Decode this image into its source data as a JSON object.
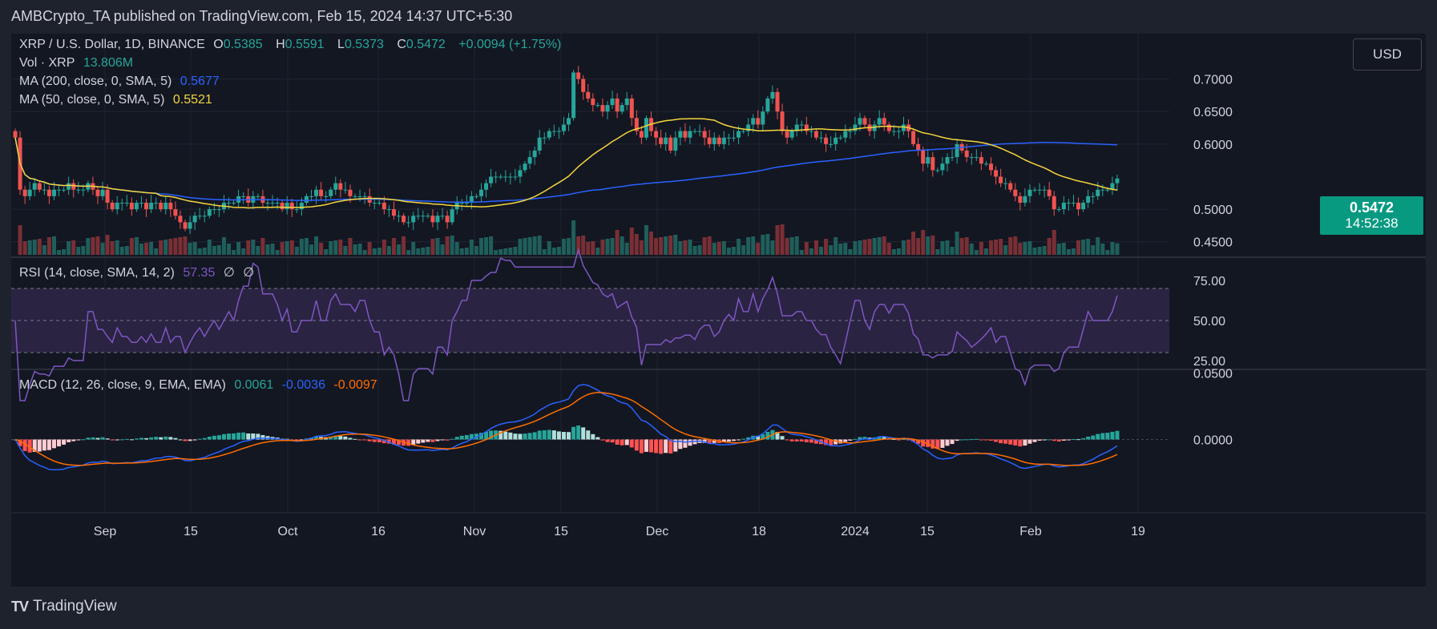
{
  "header": {
    "publish_line": "AMBCrypto_TA published on TradingView.com, Feb 15, 2024 14:37 UTC+5:30"
  },
  "legend": {
    "symbol": "XRP / U.S. Dollar, 1D, BINANCE",
    "o_label": "O",
    "o": "0.5385",
    "h_label": "H",
    "h": "0.5591",
    "l_label": "L",
    "l": "0.5373",
    "c_label": "C",
    "c": "0.5472",
    "change": "+0.0094 (+1.75%)",
    "vol_label": "Vol · XRP",
    "vol": "13.806M",
    "ma200_label": "MA (200, close, 0, SMA, 5)",
    "ma200": "0.5677",
    "ma50_label": "MA (50, close, 0, SMA, 5)",
    "ma50": "0.5521",
    "rsi_label": "RSI (14, close, SMA, 14, 2)",
    "rsi": "57.35",
    "rsi_extra1": "∅",
    "rsi_extra2": "∅",
    "macd_label": "MACD (12, 26, close, 9, EMA, EMA)",
    "macd": "0.0061",
    "macd_signal": "-0.0036",
    "macd_hist": "-0.0097"
  },
  "currency": "USD",
  "price_tag": {
    "price": "0.5472",
    "countdown": "14:52:38"
  },
  "footer": {
    "logo_text": "TV",
    "brand": "TradingView"
  },
  "colors": {
    "up": "#26a69a",
    "down": "#ef5350",
    "ma200": "#2962ff",
    "ma50": "#f5d63d",
    "rsi": "#7e57c2",
    "macd": "#2962ff",
    "signal": "#ff6d00",
    "bg": "#131722"
  },
  "chart_data": [
    {
      "type": "candlestick",
      "title": "XRP / U.S. Dollar, 1D, BINANCE",
      "x_ticks": [
        "Sep",
        "15",
        "Oct",
        "16",
        "Nov",
        "15",
        "Dec",
        "18",
        "2024",
        "15",
        "Feb",
        "19"
      ],
      "y_ticks": [
        "0.7000",
        "0.6500",
        "0.6000",
        "0.5000",
        "0.4500"
      ],
      "ylim": [
        0.43,
        0.745
      ],
      "close": [
        0.61,
        0.53,
        0.52,
        0.53,
        0.54,
        0.53,
        0.53,
        0.52,
        0.53,
        0.53,
        0.53,
        0.54,
        0.53,
        0.53,
        0.53,
        0.54,
        0.53,
        0.52,
        0.53,
        0.51,
        0.5,
        0.51,
        0.51,
        0.51,
        0.5,
        0.51,
        0.51,
        0.5,
        0.51,
        0.51,
        0.5,
        0.51,
        0.5,
        0.49,
        0.48,
        0.47,
        0.48,
        0.49,
        0.49,
        0.49,
        0.5,
        0.5,
        0.5,
        0.51,
        0.51,
        0.51,
        0.52,
        0.52,
        0.51,
        0.52,
        0.52,
        0.51,
        0.51,
        0.51,
        0.51,
        0.5,
        0.51,
        0.5,
        0.5,
        0.51,
        0.52,
        0.52,
        0.53,
        0.52,
        0.52,
        0.53,
        0.54,
        0.53,
        0.53,
        0.52,
        0.52,
        0.52,
        0.52,
        0.51,
        0.51,
        0.51,
        0.5,
        0.5,
        0.49,
        0.49,
        0.48,
        0.48,
        0.49,
        0.49,
        0.49,
        0.49,
        0.48,
        0.49,
        0.49,
        0.48,
        0.5,
        0.51,
        0.51,
        0.51,
        0.52,
        0.52,
        0.53,
        0.54,
        0.55,
        0.55,
        0.55,
        0.55,
        0.55,
        0.55,
        0.56,
        0.57,
        0.58,
        0.59,
        0.61,
        0.61,
        0.62,
        0.62,
        0.62,
        0.63,
        0.64,
        0.71,
        0.7,
        0.68,
        0.67,
        0.66,
        0.66,
        0.65,
        0.66,
        0.67,
        0.65,
        0.66,
        0.67,
        0.64,
        0.62,
        0.61,
        0.64,
        0.62,
        0.61,
        0.6,
        0.61,
        0.59,
        0.61,
        0.62,
        0.61,
        0.62,
        0.62,
        0.62,
        0.61,
        0.6,
        0.61,
        0.6,
        0.61,
        0.61,
        0.61,
        0.62,
        0.62,
        0.63,
        0.64,
        0.63,
        0.65,
        0.67,
        0.68,
        0.65,
        0.62,
        0.61,
        0.62,
        0.63,
        0.63,
        0.62,
        0.62,
        0.61,
        0.61,
        0.6,
        0.6,
        0.61,
        0.61,
        0.62,
        0.62,
        0.63,
        0.64,
        0.63,
        0.62,
        0.63,
        0.64,
        0.63,
        0.62,
        0.62,
        0.62,
        0.63,
        0.62,
        0.6,
        0.59,
        0.57,
        0.58,
        0.56,
        0.56,
        0.57,
        0.58,
        0.58,
        0.6,
        0.59,
        0.58,
        0.58,
        0.58,
        0.57,
        0.57,
        0.56,
        0.55,
        0.54,
        0.54,
        0.53,
        0.52,
        0.51,
        0.52,
        0.53,
        0.53,
        0.53,
        0.53,
        0.52,
        0.5,
        0.5,
        0.51,
        0.51,
        0.51,
        0.5,
        0.51,
        0.52,
        0.52,
        0.53,
        0.53,
        0.53,
        0.54,
        0.5472
      ],
      "volume_label": "Vol · XRP",
      "ma200": "0.5677",
      "ma50": "0.5521"
    },
    {
      "type": "line",
      "title": "RSI (14, close, SMA, 14, 2)",
      "y_ticks": [
        "75.00",
        "50.00",
        "25.00"
      ],
      "ylim": [
        20,
        88
      ],
      "band": [
        30,
        70
      ]
    },
    {
      "type": "histogram+line",
      "title": "MACD (12, 26, close, 9, EMA, EMA)",
      "y_ticks": [
        "0.0500",
        "0.0000"
      ],
      "ylim": [
        -0.055,
        0.052
      ]
    }
  ]
}
